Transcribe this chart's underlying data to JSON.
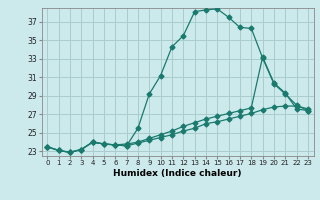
{
  "title": "",
  "xlabel": "Humidex (Indice chaleur)",
  "bg_color": "#cce9ec",
  "grid_color": "#aacccc",
  "line_color": "#1a7a6e",
  "xlim": [
    -0.5,
    23.5
  ],
  "ylim": [
    22.5,
    38.5
  ],
  "yticks": [
    23,
    25,
    27,
    29,
    31,
    33,
    35,
    37
  ],
  "xticks": [
    0,
    1,
    2,
    3,
    4,
    5,
    6,
    7,
    8,
    9,
    10,
    11,
    12,
    13,
    14,
    15,
    16,
    17,
    18,
    19,
    20,
    21,
    22,
    23
  ],
  "curve1_x": [
    0,
    1,
    2,
    3,
    4,
    5,
    6,
    7,
    8,
    9,
    10,
    11,
    12,
    13,
    14,
    15,
    16,
    17,
    18,
    19,
    20,
    21,
    22,
    23
  ],
  "curve1_y": [
    23.5,
    23.1,
    22.9,
    23.2,
    24.0,
    23.8,
    23.7,
    23.6,
    25.5,
    29.2,
    31.2,
    34.3,
    35.5,
    38.1,
    38.3,
    38.4,
    37.5,
    36.4,
    36.3,
    33.1,
    30.3,
    29.2,
    28.0,
    27.4
  ],
  "curve2_x": [
    0,
    1,
    2,
    3,
    4,
    5,
    6,
    7,
    8,
    9,
    10,
    11,
    12,
    13,
    14,
    15,
    16,
    17,
    18,
    19,
    20,
    21,
    22,
    23
  ],
  "curve2_y": [
    23.5,
    23.1,
    22.9,
    23.2,
    24.0,
    23.8,
    23.7,
    23.6,
    23.9,
    24.2,
    24.5,
    24.8,
    25.2,
    25.5,
    26.0,
    26.2,
    26.5,
    26.8,
    27.1,
    27.5,
    27.8,
    27.9,
    27.9,
    27.6
  ],
  "curve3_x": [
    0,
    1,
    2,
    3,
    4,
    5,
    6,
    7,
    8,
    9,
    10,
    11,
    12,
    13,
    14,
    15,
    16,
    17,
    18,
    19,
    20,
    21,
    22,
    23
  ],
  "curve3_y": [
    23.5,
    23.1,
    22.9,
    23.2,
    24.0,
    23.8,
    23.7,
    23.8,
    24.0,
    24.4,
    24.8,
    25.2,
    25.7,
    26.1,
    26.5,
    26.8,
    27.1,
    27.4,
    27.7,
    33.2,
    30.4,
    29.3,
    27.6,
    27.4
  ]
}
